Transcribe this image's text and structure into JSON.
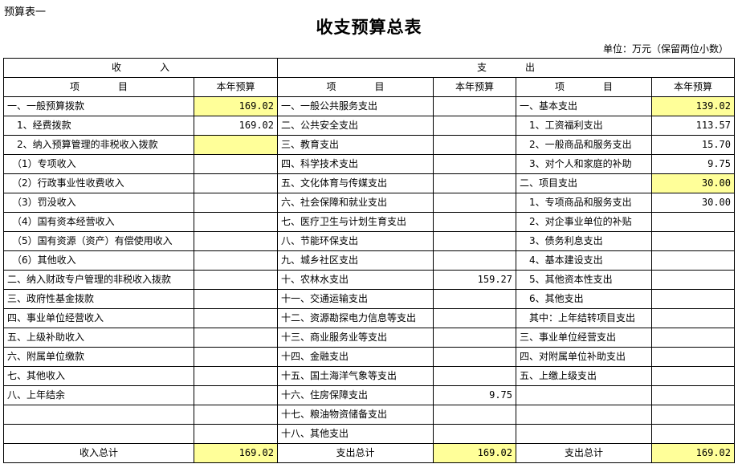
{
  "corner_label": "预算表一",
  "title": "收支预算总表",
  "unit": "单位：万元（保留两位小数）",
  "colors": {
    "highlight": "#ffff99",
    "border": "#000000"
  },
  "header": {
    "income": "收　　　　入",
    "expense": "支　　　　出",
    "item": "项　　　　目",
    "budget": "本年预算"
  },
  "rows": [
    {
      "inc": "一、一般预算拨款",
      "inc_val": "169.02",
      "inc_hl": true,
      "e1": "一、一般公共服务支出",
      "e1_val": "",
      "e1_hl": false,
      "e2": "一、基本支出",
      "e2_val": "139.02",
      "e2_hl": true
    },
    {
      "inc": "　1、经费拨款",
      "inc_val": "169.02",
      "inc_hl": false,
      "e1": "二、公共安全支出",
      "e1_val": "",
      "e1_hl": false,
      "e2": "　1、工资福利支出",
      "e2_val": "113.57",
      "e2_hl": false
    },
    {
      "inc": "　2、纳入预算管理的非税收入拨款",
      "inc_val": "",
      "inc_hl": true,
      "e1": "三、教育支出",
      "e1_val": "",
      "e1_hl": false,
      "e2": "　2、一般商品和服务支出",
      "e2_val": "15.70",
      "e2_hl": false
    },
    {
      "inc": "　（1）专项收入",
      "inc_val": "",
      "inc_hl": false,
      "e1": "四、科学技术支出",
      "e1_val": "",
      "e1_hl": false,
      "e2": "　3、对个人和家庭的补助",
      "e2_val": "9.75",
      "e2_hl": false
    },
    {
      "inc": "　（2）行政事业性收费收入",
      "inc_val": "",
      "inc_hl": false,
      "e1": "五、文化体育与传媒支出",
      "e1_val": "",
      "e1_hl": false,
      "e2": "二、项目支出",
      "e2_val": "30.00",
      "e2_hl": true
    },
    {
      "inc": "　（3）罚没收入",
      "inc_val": "",
      "inc_hl": false,
      "e1": "六、社会保障和就业支出",
      "e1_val": "",
      "e1_hl": false,
      "e2": "　1、专项商品和服务支出",
      "e2_val": "30.00",
      "e2_hl": false
    },
    {
      "inc": "　（4）国有资本经营收入",
      "inc_val": "",
      "inc_hl": false,
      "e1": "七、医疗卫生与计划生育支出",
      "e1_val": "",
      "e1_hl": false,
      "e2": "　2、对企事业单位的补贴",
      "e2_val": "",
      "e2_hl": false
    },
    {
      "inc": "　（5）国有资源（资产）有偿使用收入",
      "inc_val": "",
      "inc_hl": false,
      "e1": "八、节能环保支出",
      "e1_val": "",
      "e1_hl": false,
      "e2": "　3、债务利息支出",
      "e2_val": "",
      "e2_hl": false
    },
    {
      "inc": "　（6）其他收入",
      "inc_val": "",
      "inc_hl": false,
      "e1": "九、城乡社区支出",
      "e1_val": "",
      "e1_hl": false,
      "e2": "　4、基本建设支出",
      "e2_val": "",
      "e2_hl": false
    },
    {
      "inc": "二、纳入财政专户管理的非税收入拨款",
      "inc_val": "",
      "inc_hl": false,
      "e1": "十、农林水支出",
      "e1_val": "159.27",
      "e1_hl": false,
      "e2": "　5、其他资本性支出",
      "e2_val": "",
      "e2_hl": false
    },
    {
      "inc": "三、政府性基金拨款",
      "inc_val": "",
      "inc_hl": false,
      "e1": "十一、交通运输支出",
      "e1_val": "",
      "e1_hl": false,
      "e2": "　6、其他支出",
      "e2_val": "",
      "e2_hl": false
    },
    {
      "inc": "四、事业单位经营收入",
      "inc_val": "",
      "inc_hl": false,
      "e1": "十二、资源勘探电力信息等支出",
      "e1_val": "",
      "e1_hl": false,
      "e2": "　其中：上年结转项目支出",
      "e2_val": "",
      "e2_hl": false
    },
    {
      "inc": "五、上级补助收入",
      "inc_val": "",
      "inc_hl": false,
      "e1": "十三、商业服务业等支出",
      "e1_val": "",
      "e1_hl": false,
      "e2": "三、事业单位经营支出",
      "e2_val": "",
      "e2_hl": false
    },
    {
      "inc": "六、附属单位缴款",
      "inc_val": "",
      "inc_hl": false,
      "e1": "十四、金融支出",
      "e1_val": "",
      "e1_hl": false,
      "e2": "四、对附属单位补助支出",
      "e2_val": "",
      "e2_hl": false
    },
    {
      "inc": "七、其他收入",
      "inc_val": "",
      "inc_hl": false,
      "e1": "十五、国土海洋气象等支出",
      "e1_val": "",
      "e1_hl": false,
      "e2": "五、上缴上级支出",
      "e2_val": "",
      "e2_hl": false
    },
    {
      "inc": "八、上年结余",
      "inc_val": "",
      "inc_hl": false,
      "e1": "十六、住房保障支出",
      "e1_val": "9.75",
      "e1_hl": false,
      "e2": "",
      "e2_val": "",
      "e2_hl": false
    },
    {
      "inc": "",
      "inc_val": "",
      "inc_hl": false,
      "e1": "十七、粮油物资储备支出",
      "e1_val": "",
      "e1_hl": false,
      "e2": "",
      "e2_val": "",
      "e2_hl": false
    },
    {
      "inc": "",
      "inc_val": "",
      "inc_hl": false,
      "e1": "十八、其他支出",
      "e1_val": "",
      "e1_hl": false,
      "e2": "",
      "e2_val": "",
      "e2_hl": false
    }
  ],
  "totals": {
    "income_label": "收入总计",
    "income_val": "169.02",
    "expense1_label": "支出总计",
    "expense1_val": "169.02",
    "expense2_label": "支出总计",
    "expense2_val": "169.02"
  }
}
